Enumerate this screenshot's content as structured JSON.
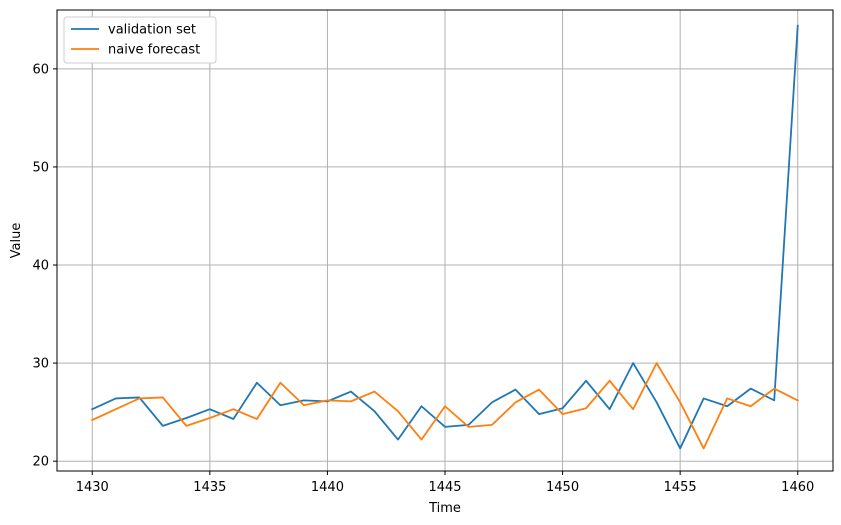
{
  "chart_data": {
    "type": "line",
    "xlabel": "Time",
    "ylabel": "Value",
    "xlim": [
      1428.5,
      1461.5
    ],
    "ylim": [
      19,
      66
    ],
    "xticks": [
      1430,
      1435,
      1440,
      1445,
      1450,
      1455,
      1460
    ],
    "yticks": [
      20,
      30,
      40,
      50,
      60
    ],
    "grid": true,
    "legend_position": "top-left",
    "x": [
      1430,
      1431,
      1432,
      1433,
      1434,
      1435,
      1436,
      1437,
      1438,
      1439,
      1440,
      1441,
      1442,
      1443,
      1444,
      1445,
      1446,
      1447,
      1448,
      1449,
      1450,
      1451,
      1452,
      1453,
      1454,
      1455,
      1456,
      1457,
      1458,
      1459,
      1460
    ],
    "series": [
      {
        "name": "validation set",
        "color": "#1f77b4",
        "values": [
          25.3,
          26.4,
          26.5,
          23.6,
          24.4,
          25.3,
          24.3,
          28.0,
          25.7,
          26.2,
          26.1,
          27.1,
          25.1,
          22.2,
          25.6,
          23.5,
          23.7,
          26.0,
          27.3,
          24.8,
          25.4,
          28.2,
          25.3,
          30.0,
          26.0,
          21.3,
          26.4,
          25.6,
          27.4,
          26.2,
          64.4
        ]
      },
      {
        "name": "naive forecast",
        "color": "#ff7f0e",
        "values": [
          24.2,
          25.3,
          26.4,
          26.5,
          23.6,
          24.4,
          25.3,
          24.3,
          28.0,
          25.7,
          26.2,
          26.1,
          27.1,
          25.1,
          22.2,
          25.6,
          23.5,
          23.7,
          26.0,
          27.3,
          24.8,
          25.4,
          28.2,
          25.3,
          30.0,
          26.0,
          21.3,
          26.4,
          25.6,
          27.4,
          26.2
        ]
      }
    ]
  }
}
